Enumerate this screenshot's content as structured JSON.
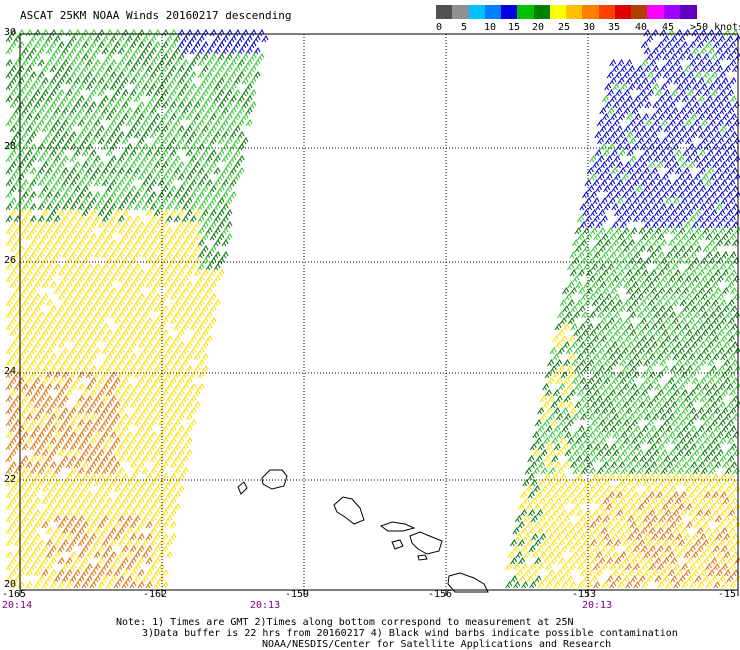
{
  "title": "ASCAT 25KM NOAA Winds 20160217 descending",
  "legend": {
    "labels": [
      "0",
      "5",
      "10",
      "15",
      "20",
      "25",
      "30",
      "35",
      "40",
      "45",
      ">50 knots"
    ],
    "colors": [
      "#505050",
      "#909090",
      "#00c0ff",
      "#0080ff",
      "#0000e0",
      "#00c000",
      "#008000",
      "#ffff00",
      "#ffc000",
      "#ff8000",
      "#ff4000",
      "#e00000",
      "#b04000",
      "#ff00ff",
      "#a000ff",
      "#6000c0"
    ]
  },
  "axes": {
    "lon_labels": [
      "-165",
      "-162",
      "-159",
      "-156",
      "-153",
      "-15"
    ],
    "lat_labels": [
      "30",
      "28",
      "26",
      "24",
      "22",
      "20"
    ]
  },
  "times": [
    "20:14",
    "20:13",
    "20:13"
  ],
  "notes": {
    "line1": "Note: 1) Times are GMT 2)Times along bottom correspond to measurement at 25N",
    "line2": "3)Data buffer is 22 hrs from 20160217 4) Black wind barbs indicate possible contamination",
    "line3": "NOAA/NESDIS/Center for Satellite Applications and Research"
  },
  "colors": {
    "yellow": "#ffdf00",
    "orange": "#e07000",
    "green_light": "#2ec82e",
    "green_dark": "#007800",
    "blue": "#0000cc",
    "coast": "#000000",
    "grid": "#000000",
    "time": "#800080"
  }
}
